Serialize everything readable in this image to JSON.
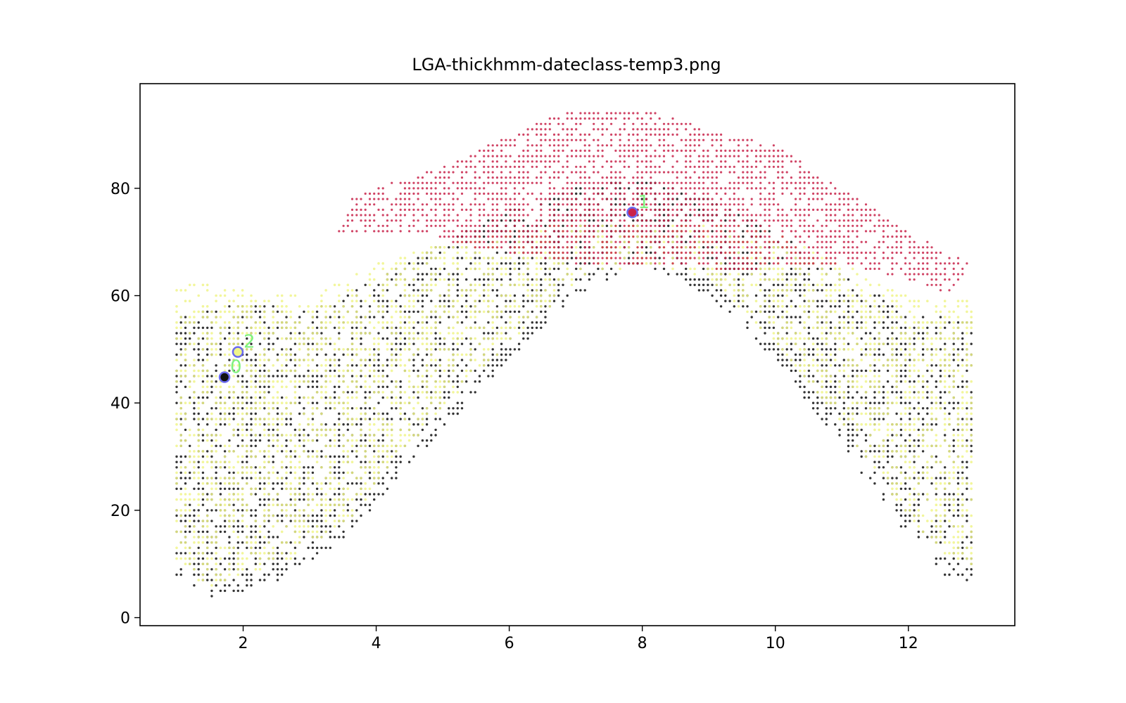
{
  "chart_data": {
    "type": "scatter",
    "title": "LGA-thickhmm-dateclass-temp3.png",
    "xlabel": "",
    "ylabel": "",
    "xlim": [
      0.45,
      13.6
    ],
    "ylim": [
      -1.5,
      99.5
    ],
    "x_ticks": [
      2,
      4,
      6,
      8,
      10,
      12
    ],
    "y_ticks": [
      0,
      20,
      40,
      60,
      80
    ],
    "grid": false,
    "legend": "none",
    "series": [
      {
        "color": "#111111",
        "envelope": [
          [
            1,
            8
          ],
          [
            1.5,
            3
          ],
          [
            2,
            5
          ],
          [
            2.6,
            7
          ],
          [
            3.6,
            15
          ],
          [
            4.2,
            24
          ],
          [
            5,
            35
          ],
          [
            6,
            48
          ],
          [
            7,
            60
          ],
          [
            8,
            66
          ],
          [
            9,
            60
          ],
          [
            10,
            48
          ],
          [
            11,
            32
          ],
          [
            11.8,
            18
          ],
          [
            12.5,
            8
          ],
          [
            13,
            6
          ],
          [
            13,
            55
          ],
          [
            12,
            57
          ],
          [
            11,
            64
          ],
          [
            10,
            72
          ],
          [
            9,
            78
          ],
          [
            8,
            82
          ],
          [
            7,
            80
          ],
          [
            6,
            76
          ],
          [
            5,
            70
          ],
          [
            4,
            63
          ],
          [
            3,
            57
          ],
          [
            2,
            59
          ],
          [
            1,
            56
          ]
        ]
      },
      {
        "color": "#f0f58a",
        "envelope": [
          [
            1,
            10
          ],
          [
            1.5,
            5
          ],
          [
            2,
            8
          ],
          [
            2.6,
            10
          ],
          [
            3.6,
            18
          ],
          [
            4.2,
            28
          ],
          [
            5,
            39
          ],
          [
            6,
            51
          ],
          [
            7,
            62
          ],
          [
            8,
            66
          ],
          [
            9,
            63
          ],
          [
            10,
            51
          ],
          [
            11,
            36
          ],
          [
            11.8,
            22
          ],
          [
            12.5,
            12
          ],
          [
            13,
            9
          ],
          [
            13,
            60
          ],
          [
            12,
            60
          ],
          [
            11,
            66
          ],
          [
            10,
            72
          ],
          [
            9,
            74
          ],
          [
            8,
            74
          ],
          [
            7,
            74
          ],
          [
            6,
            72
          ],
          [
            5,
            70
          ],
          [
            4,
            66
          ],
          [
            3,
            60
          ],
          [
            2,
            61
          ],
          [
            1,
            63
          ]
        ]
      },
      {
        "color": "#c8234a",
        "envelope": [
          [
            4.6,
            72
          ],
          [
            5.4,
            69
          ],
          [
            6,
            68
          ],
          [
            7,
            66
          ],
          [
            8,
            66
          ],
          [
            9,
            65
          ],
          [
            10,
            65
          ],
          [
            11,
            66
          ],
          [
            12,
            63
          ],
          [
            12.7,
            60
          ],
          [
            12.9,
            66
          ],
          [
            12,
            72
          ],
          [
            11,
            80
          ],
          [
            10,
            88
          ],
          [
            9,
            91
          ],
          [
            8,
            95
          ],
          [
            7,
            95
          ],
          [
            6,
            90
          ],
          [
            5,
            84
          ],
          [
            4.4,
            82
          ],
          [
            3.6,
            78
          ],
          [
            3.4,
            71
          ]
        ]
      }
    ],
    "centroids": [
      {
        "label": "0",
        "x": 1.72,
        "y": 44.8,
        "fill": "#111111",
        "edge": "#6a6af0"
      },
      {
        "label": "1",
        "x": 7.85,
        "y": 75.5,
        "fill": "#c8234a",
        "edge": "#6a6af0"
      },
      {
        "label": "2",
        "x": 1.92,
        "y": 49.5,
        "fill": "#f0f58a",
        "edge": "#6a6af0"
      }
    ],
    "centroid_label_color": "#7ef27e"
  }
}
